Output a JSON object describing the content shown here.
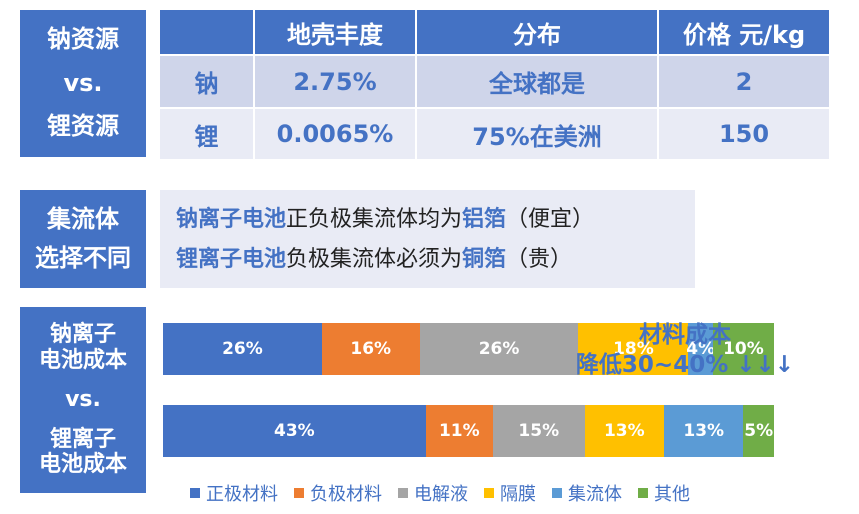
{
  "section1": {
    "side_label": [
      "钠资源",
      "vs.",
      "锂资源"
    ],
    "headers": [
      "",
      "地壳丰度",
      "分布",
      "价格 元/kg"
    ],
    "rows": [
      {
        "element": "钠",
        "abundance": "2.75%",
        "distribution": "全球都是",
        "price": "2"
      },
      {
        "element": "锂",
        "abundance": "0.0065%",
        "distribution": "75%在美洲",
        "price": "150"
      }
    ]
  },
  "section2": {
    "side_label": [
      "集流体",
      "选择不同"
    ],
    "line1": {
      "hl1": "钠离子电池",
      "text1": "正负极集流体均为",
      "hl2": "铝箔",
      "text2": "（便宜）"
    },
    "line2": {
      "hl1": "锂离子电池",
      "text1": "负极集流体必须为",
      "hl2": "铜箔",
      "text2": "（贵）"
    }
  },
  "section3": {
    "side_label": [
      "钠离子",
      "电池成本",
      "vs.",
      "锂离子",
      "电池成本"
    ],
    "annotation": {
      "line1": "材料成本",
      "line2": "降低30~40% ↓↓↓"
    }
  },
  "chart_data": {
    "type": "bar",
    "stacked": true,
    "orientation": "horizontal",
    "series_order": [
      "正极材料",
      "负极材料",
      "电解液",
      "隔膜",
      "集流体",
      "其他"
    ],
    "colors": [
      "#4472c4",
      "#ed7d31",
      "#a5a5a5",
      "#ffc000",
      "#5b9bd5",
      "#70ad47"
    ],
    "bars": [
      {
        "values": [
          26,
          16,
          26,
          18,
          4,
          10
        ],
        "labels": [
          "26%",
          "16%",
          "26%",
          "18%",
          "4%",
          "10%"
        ]
      },
      {
        "values": [
          43,
          11,
          15,
          13,
          13,
          5
        ],
        "labels": [
          "43%",
          "11%",
          "15%",
          "13%",
          "13%",
          "5%"
        ]
      }
    ],
    "legend_placement": "bottom"
  }
}
